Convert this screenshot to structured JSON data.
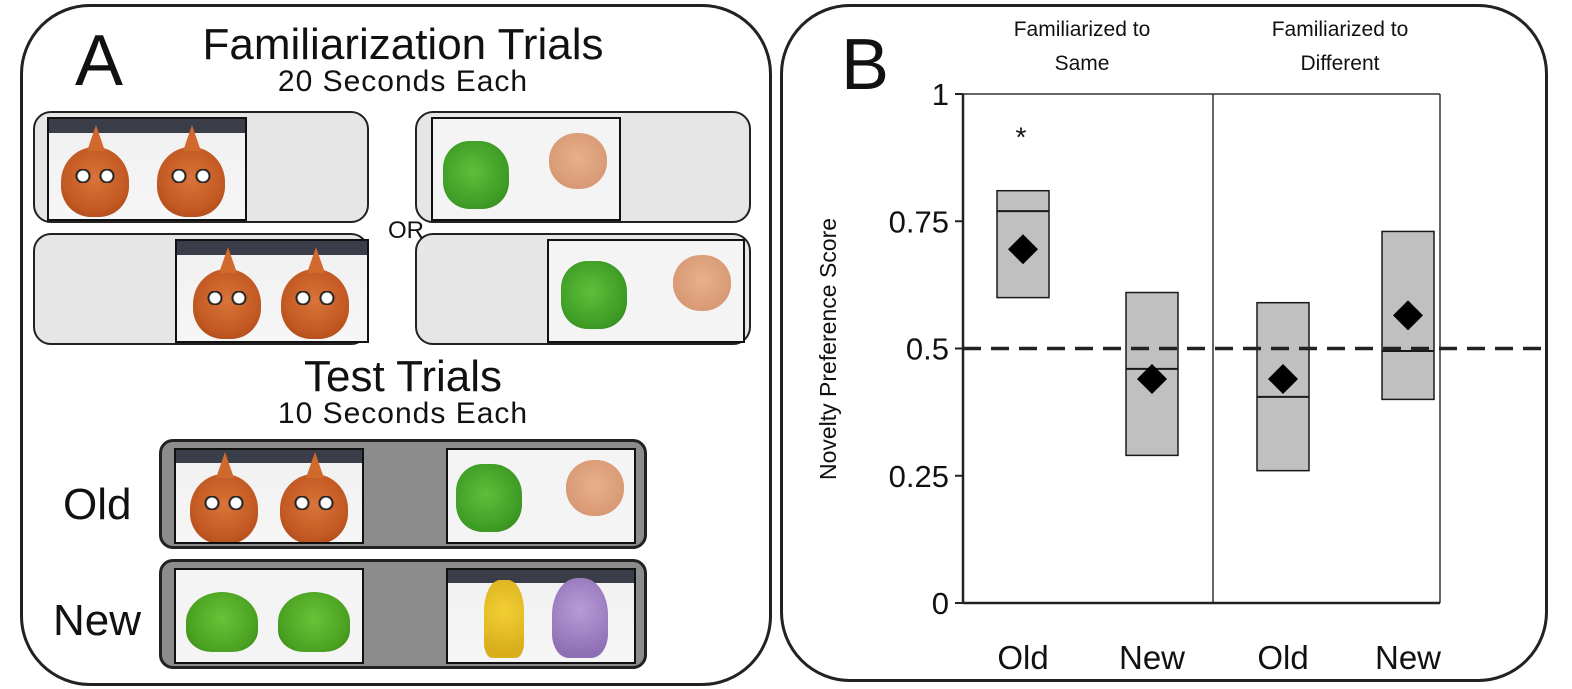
{
  "panel_a": {
    "letter": "A",
    "familiarization_title": "Familiarization Trials",
    "familiarization_subtitle": "20 Seconds Each",
    "or_label": "OR",
    "test_title": "Test Trials",
    "test_subtitle": "10 Seconds Each",
    "old_label": "Old",
    "new_label": "New"
  },
  "panel_b": {
    "letter": "B"
  },
  "chart_data": {
    "type": "box",
    "title": "",
    "ylabel": "Novelty Preference Score",
    "xlabel": "",
    "ylim": [
      0,
      1
    ],
    "yticks": [
      0,
      0.25,
      0.5,
      0.75,
      1
    ],
    "ytick_labels": [
      "0",
      "0.25",
      "0.5",
      "0.75",
      "1"
    ],
    "reference_line": 0.5,
    "groups": [
      {
        "name": "Familiarized to Same",
        "name_lines": [
          "Familiarized to",
          "Same"
        ],
        "categories": [
          {
            "label": "Old",
            "q1": 0.6,
            "q3": 0.81,
            "median": 0.77,
            "mean": 0.695,
            "annotation": "*"
          },
          {
            "label": "New",
            "q1": 0.29,
            "q3": 0.61,
            "median": 0.46,
            "mean": 0.44,
            "annotation": ""
          }
        ]
      },
      {
        "name": "Familiarized to Different",
        "name_lines": [
          "Familiarized to",
          "Different"
        ],
        "categories": [
          {
            "label": "Old",
            "q1": 0.26,
            "q3": 0.59,
            "median": 0.405,
            "mean": 0.44,
            "annotation": ""
          },
          {
            "label": "New",
            "q1": 0.4,
            "q3": 0.73,
            "median": 0.495,
            "mean": 0.565,
            "annotation": ""
          }
        ]
      }
    ],
    "colors": {
      "box": "#c0c0c0",
      "stroke": "#1a1a1a",
      "marker": "#000000"
    }
  }
}
